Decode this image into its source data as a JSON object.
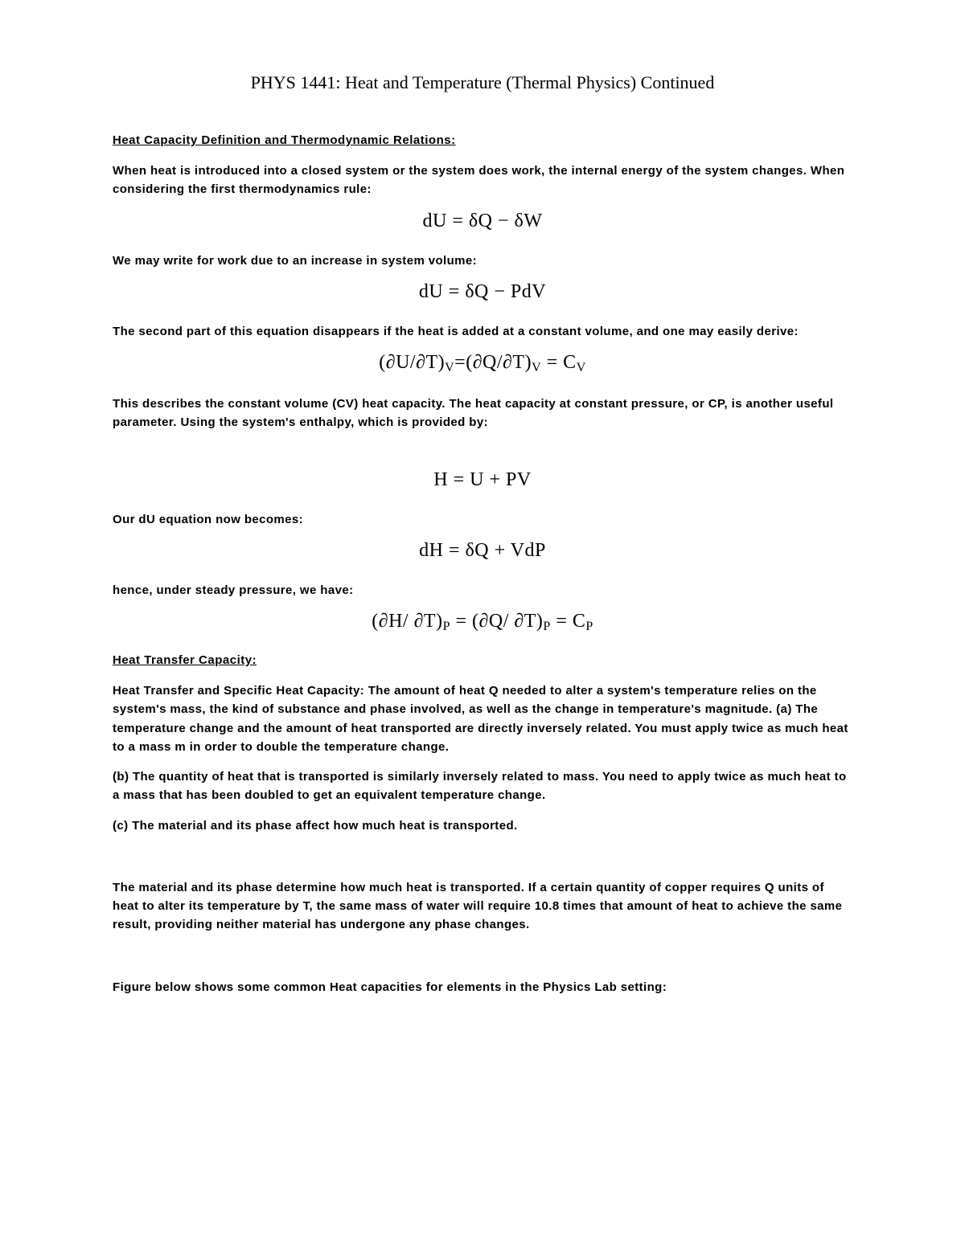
{
  "title": "PHYS 1441: Heat and Temperature (Thermal Physics) Continued",
  "section1": {
    "heading": "Heat Capacity Definition and Thermodynamic Relations:",
    "p1": "When heat is introduced into a closed system or the system does work, the internal energy of the system changes. When considering the first thermodynamics rule:",
    "eq1": "dU = δQ − δW",
    "p2": "We may write for work due to an increase in system volume:",
    "eq2": "dU = δQ − PdV",
    "p3": "The second part of this equation disappears if the heat is added at a constant volume, and one may easily derive:",
    "eq3_a": "(∂U/∂T)",
    "eq3_sub1": "V",
    "eq3_b": "=(∂Q/∂T)",
    "eq3_sub2": "V",
    "eq3_c": " = C",
    "eq3_sub3": "V",
    "p4": "This describes the constant volume (CV) heat capacity. The heat capacity at constant pressure, or CP, is another useful parameter. Using the system's enthalpy, which is provided by:",
    "eq4": "H = U + PV",
    "p5": "Our dU equation now becomes:",
    "eq5": "dH = δQ + VdP",
    "p6": "hence, under steady pressure, we have:",
    "eq6_a": "(∂H/ ∂T)",
    "eq6_sub1": "P",
    "eq6_b": " = (∂Q/ ∂T)",
    "eq6_sub2": "P",
    "eq6_c": " = C",
    "eq6_sub3": "P"
  },
  "section2": {
    "heading": "Heat Transfer Capacity:",
    "p1": "Heat Transfer and Specific Heat Capacity: The amount of heat Q needed to alter a system's temperature relies on the system's mass, the kind of substance and phase involved, as well as the change in temperature's magnitude. (a) The temperature change and the amount of heat transported are directly inversely related. You must apply twice as much heat to a mass m in order to double the temperature change.",
    "p2": "(b) The quantity of heat that is transported is similarly inversely related to mass. You need to apply twice as much heat to a mass that has been doubled to get an equivalent temperature change.",
    "p3": "(c) The material and its phase affect how much heat is transported.",
    "p4": "The material and its phase determine how much heat is transported. If a certain quantity of copper requires Q units of heat to alter its temperature by T, the same mass of water will require 10.8 times that amount of heat to achieve the same result, providing neither material has undergone any phase changes.",
    "p5": "Figure below shows some common Heat capacities for elements in the Physics Lab setting:"
  }
}
